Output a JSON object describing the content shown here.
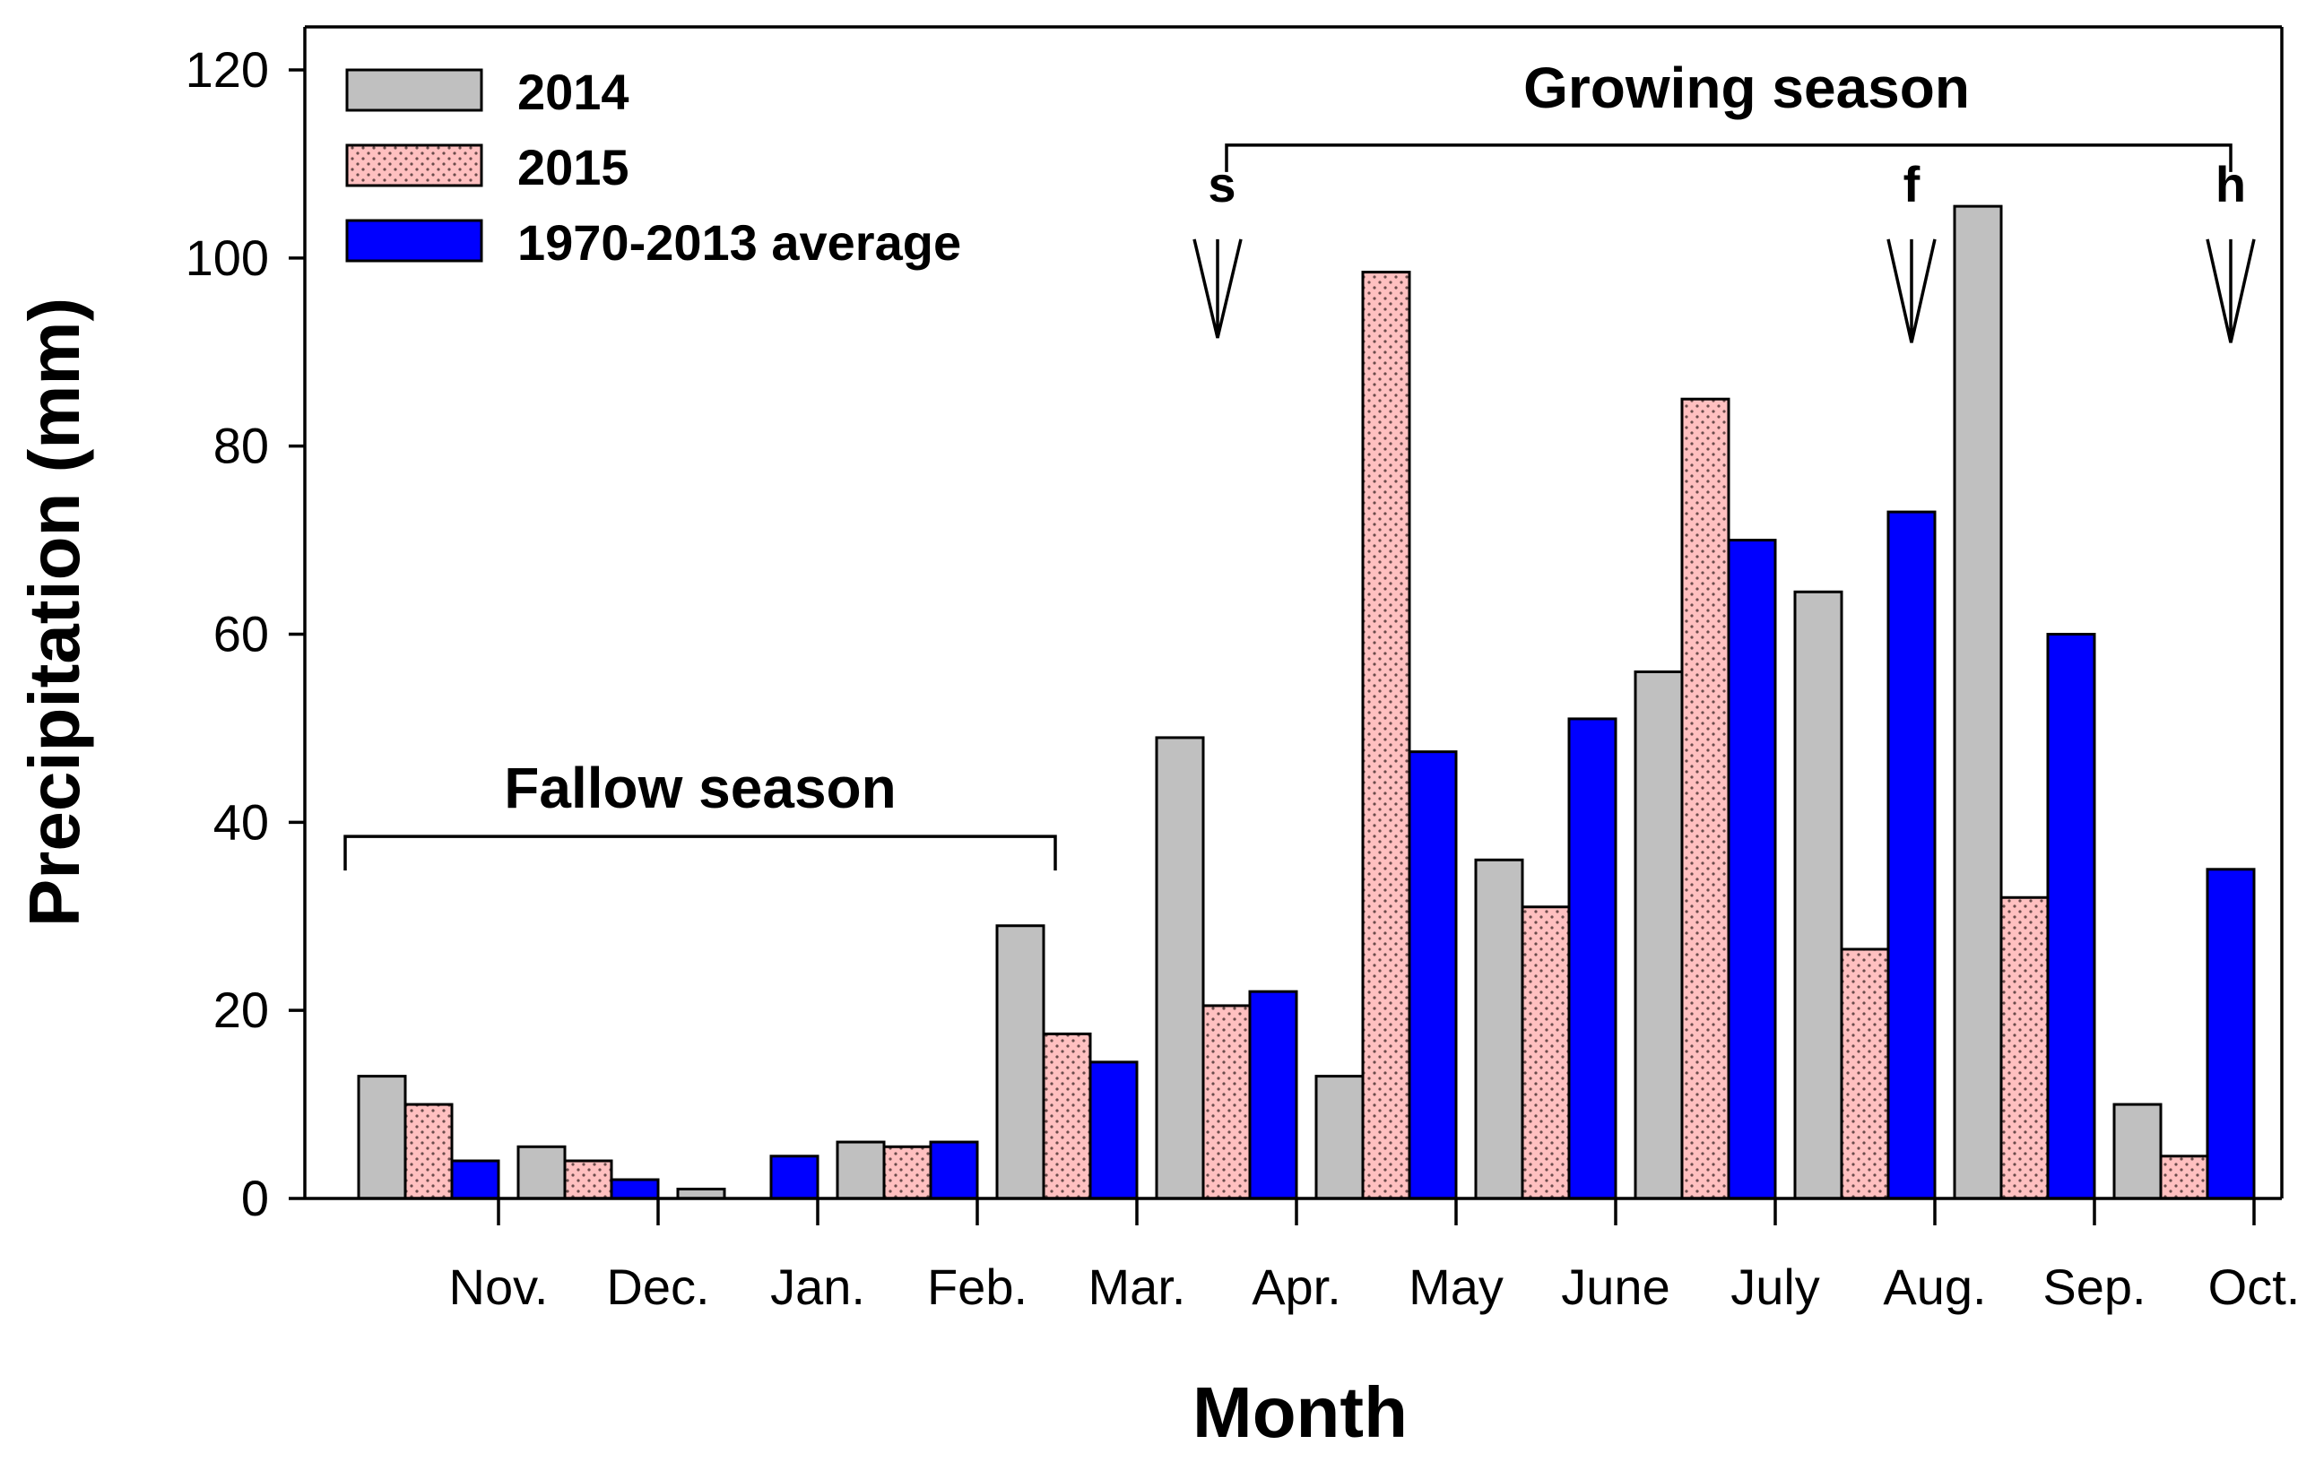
{
  "chart_data": {
    "type": "bar",
    "title": "",
    "xlabel": "Month",
    "ylabel": "Precipitation (mm)",
    "ylim": [
      0,
      120
    ],
    "yticks": [
      0,
      20,
      40,
      60,
      80,
      100,
      120
    ],
    "yticklabels": [
      "0",
      "20",
      "40",
      "60",
      "80",
      "100",
      "120"
    ],
    "categories": [
      "Nov.",
      "Dec.",
      "Jan.",
      "Feb.",
      "Mar.",
      "Apr.",
      "May",
      "June",
      "July",
      "Aug.",
      "Sep.",
      "Oct."
    ],
    "series": [
      {
        "name": "2014",
        "color": "#c0c0c0",
        "pattern": "solid",
        "values": [
          13,
          5.5,
          1,
          6,
          29,
          49,
          13,
          36,
          56,
          64.5,
          105.5,
          10
        ]
      },
      {
        "name": "2015",
        "color": "#ffc0c0",
        "pattern": "dotted",
        "values": [
          10,
          4,
          0,
          5.5,
          17.5,
          20.5,
          98.5,
          31,
          85,
          26.5,
          32,
          4.5
        ]
      },
      {
        "name": "1970-2013 average",
        "color": "#0000ff",
        "pattern": "solid",
        "values": [
          4,
          2,
          4.5,
          6,
          14.5,
          22,
          47.5,
          51,
          70,
          73,
          60,
          35
        ]
      }
    ],
    "legend_position": "top-left",
    "annotations": {
      "fallow_season": {
        "label": "Fallow season",
        "from_category": "Nov.",
        "to_category": "Mar.",
        "bracket_value": 38.5
      },
      "growing_season": {
        "label": "Growing season",
        "from_category": "Apr.",
        "to_category": "Oct.",
        "bracket_value": 112
      },
      "markers": [
        {
          "label": "s",
          "category": "Apr.",
          "arrow_top": 102,
          "arrow_bottom": 91.5
        },
        {
          "label": "f",
          "category": "Aug.",
          "arrow_top": 102,
          "arrow_bottom": 91
        },
        {
          "label": "h",
          "category": "Oct.",
          "arrow_top": 102,
          "arrow_bottom": 91
        }
      ]
    }
  }
}
